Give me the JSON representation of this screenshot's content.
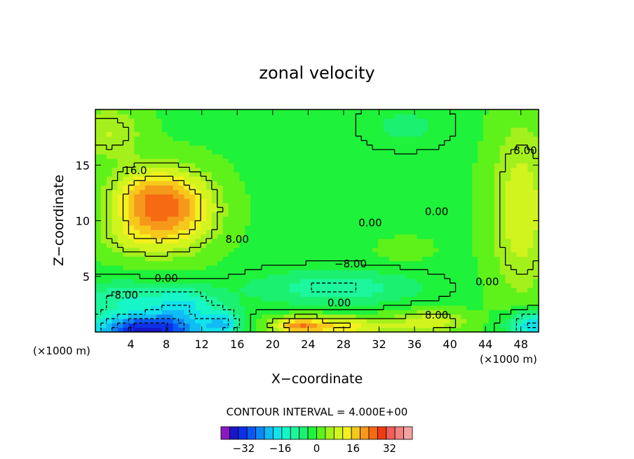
{
  "chart_data": {
    "type": "heatmap",
    "title": "zonal velocity",
    "xlabel": "X−coordinate",
    "ylabel": "Z−coordinate",
    "x_unit_left": "(×1000 m)",
    "x_unit_right": "(×1000 m)",
    "xlim": [
      0,
      50
    ],
    "ylim": [
      0,
      20
    ],
    "xticks": [
      4,
      8,
      12,
      16,
      20,
      24,
      28,
      32,
      36,
      40,
      44,
      48
    ],
    "yticks": [
      5,
      10,
      15
    ],
    "contour_interval_text": "CONTOUR INTERVAL = 4.000E+00",
    "contour_labels": [
      {
        "text": "16.0",
        "x": 4.5,
        "y": 14.2
      },
      {
        "text": "0.00",
        "x": 8.0,
        "y": 4.5
      },
      {
        "text": "−8.00",
        "x": 3.0,
        "y": 3.0
      },
      {
        "text": "8.00",
        "x": 16.0,
        "y": 8.0
      },
      {
        "text": "0.00",
        "x": 31.0,
        "y": 9.5
      },
      {
        "text": "0.00",
        "x": 38.5,
        "y": 10.5
      },
      {
        "text": "8.00",
        "x": 48.5,
        "y": 16.0
      },
      {
        "text": "−8.00",
        "x": 28.8,
        "y": 5.8
      },
      {
        "text": "0.00",
        "x": 27.5,
        "y": 2.3
      },
      {
        "text": "8.00",
        "x": 38.5,
        "y": 1.2
      },
      {
        "text": "0.00",
        "x": 44.2,
        "y": 4.2
      }
    ],
    "features": [
      {
        "x": 6.0,
        "y": 11.8,
        "value": 20,
        "sx": 4.5,
        "sy": 2.8
      },
      {
        "x": 10.0,
        "y": 11.0,
        "value": 14,
        "sx": 4.5,
        "sy": 3.5
      },
      {
        "x": 5.0,
        "y": 8.5,
        "value": 8,
        "sx": 5.0,
        "sy": 2.0
      },
      {
        "x": 6.0,
        "y": 0.2,
        "value": -36,
        "sx": 6.5,
        "sy": 1.4
      },
      {
        "x": 10.0,
        "y": 2.5,
        "value": -14,
        "sx": 4.0,
        "sy": 1.5
      },
      {
        "x": 3.0,
        "y": 3.0,
        "value": -10,
        "sx": 5.0,
        "sy": 1.5
      },
      {
        "x": 14.5,
        "y": 0.8,
        "value": -14,
        "sx": 2.0,
        "sy": 1.2
      },
      {
        "x": 27.0,
        "y": 4.0,
        "value": -10,
        "sx": 9.0,
        "sy": 1.5
      },
      {
        "x": 35.0,
        "y": 18.5,
        "value": -4,
        "sx": 5.0,
        "sy": 2.0
      },
      {
        "x": 27.0,
        "y": 0.5,
        "value": 16,
        "sx": 7.0,
        "sy": 0.9
      },
      {
        "x": 38.0,
        "y": 1.0,
        "value": 11,
        "sx": 4.0,
        "sy": 1.0
      },
      {
        "x": 23.0,
        "y": 0.6,
        "value": 14,
        "sx": 2.5,
        "sy": 0.7
      },
      {
        "x": 49.5,
        "y": 0.6,
        "value": -20,
        "sx": 3.0,
        "sy": 1.3
      },
      {
        "x": 48.0,
        "y": 11.0,
        "value": 12,
        "sx": 3.5,
        "sy": 8.0
      },
      {
        "x": 1.5,
        "y": 18.0,
        "value": 9,
        "sx": 4.0,
        "sy": 2.5
      },
      {
        "x": 35.0,
        "y": 7.5,
        "value": 4,
        "sx": 3.0,
        "sy": 1.0
      }
    ],
    "colorbar": {
      "tick_labels": [
        "−32",
        "−16",
        "0",
        "16",
        "32"
      ],
      "tick_values": [
        -32,
        -16,
        0,
        16,
        32
      ],
      "levels": [
        -42,
        -38,
        -34,
        -30,
        -26,
        -22,
        -18,
        -14,
        -10,
        -6,
        -2,
        2,
        6,
        10,
        14,
        18,
        22,
        26,
        30,
        34,
        38,
        42
      ],
      "colors": [
        "#8a1ac0",
        "#1a16c8",
        "#0c30e6",
        "#0a58f4",
        "#0c88f6",
        "#10bcf4",
        "#12e2ea",
        "#16f6c6",
        "#1cf69c",
        "#1cf070",
        "#1ef23a",
        "#5ef21a",
        "#a4f01c",
        "#d2f41e",
        "#f4f01e",
        "#f6c81c",
        "#f6981a",
        "#f66a12",
        "#ee3c12",
        "#f05e5c",
        "#f28282",
        "#f2a2a2"
      ]
    }
  }
}
